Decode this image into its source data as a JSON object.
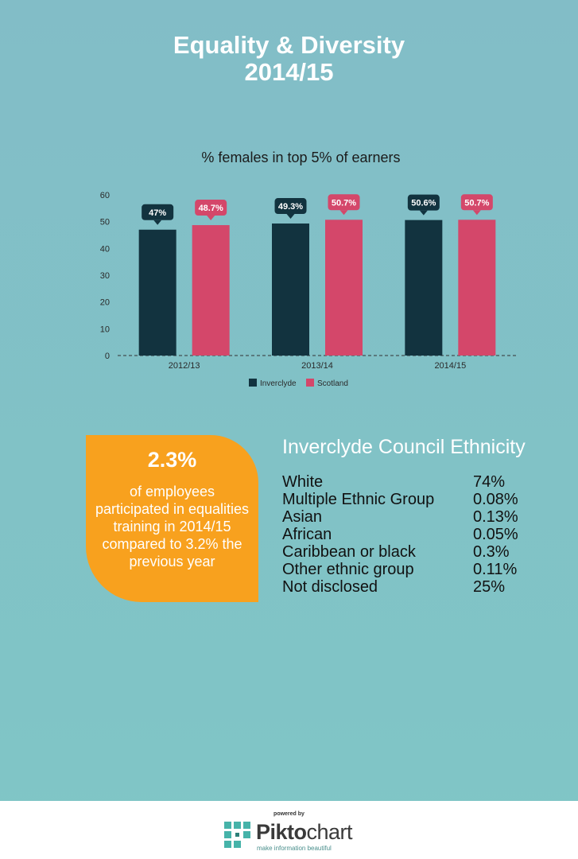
{
  "header": {
    "title_line1": "Equality & Diversity",
    "title_line2": "2014/15"
  },
  "chart_data": {
    "type": "bar",
    "title": "% females in top 5% of earners",
    "categories": [
      "2012/13",
      "2013/14",
      "2014/15"
    ],
    "series": [
      {
        "name": "Inverclyde",
        "values": [
          47,
          49.3,
          50.6
        ],
        "labels": [
          "47%",
          "49.3%",
          "50.6%"
        ],
        "color": "#12333f"
      },
      {
        "name": "Scotland",
        "values": [
          48.7,
          50.7,
          50.7
        ],
        "labels": [
          "48.7%",
          "50.7%",
          "50.7%"
        ],
        "color": "#d4476a"
      }
    ],
    "ylim": [
      0,
      60
    ],
    "yticks": [
      0,
      10,
      20,
      30,
      40,
      50,
      60
    ],
    "legend": "bottom"
  },
  "callout": {
    "value": "2.3%",
    "text": "of employees participated in equalities training in 2014/15 compared to 3.2% the previous year",
    "color": "#f8a11e"
  },
  "ethnicity": {
    "title": "Inverclyde Council Ethnicity",
    "rows": [
      {
        "label": "White",
        "value": "74%"
      },
      {
        "label": "Multiple Ethnic Group",
        "value": "0.08%"
      },
      {
        "label": "Asian",
        "value": "0.13%"
      },
      {
        "label": "African",
        "value": "0.05%"
      },
      {
        "label": "Caribbean or black",
        "value": "0.3%"
      },
      {
        "label": "Other ethnic group",
        "value": "0.11%"
      },
      {
        "label": "Not disclosed",
        "value": "25%"
      }
    ]
  },
  "footer": {
    "powered_by": "powered by",
    "brand_bold": "Pikto",
    "brand_rest": "chart",
    "tagline": "make information beautiful"
  }
}
